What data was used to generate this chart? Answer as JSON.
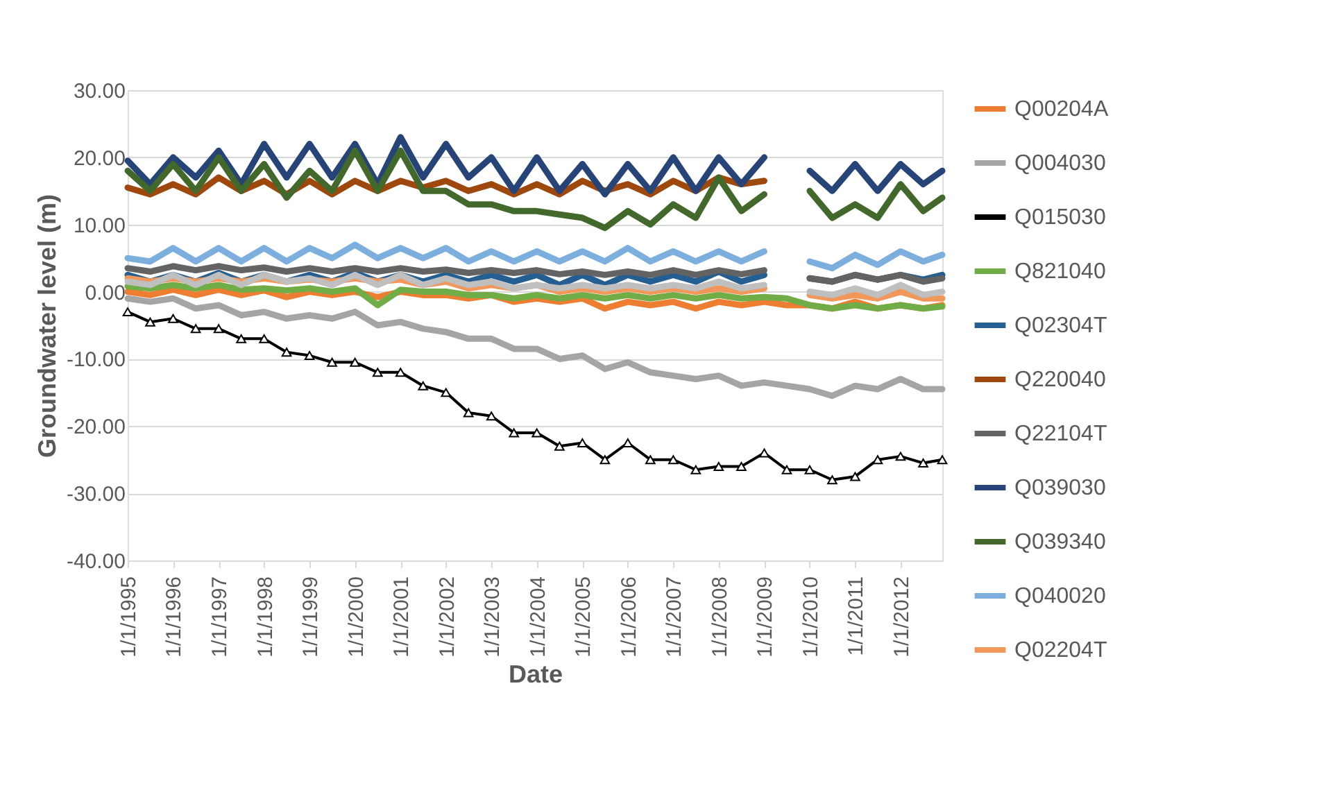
{
  "chart_data": {
    "type": "line",
    "xlabel": "Date",
    "ylabel": "Groundwater level (m)",
    "x": [
      "1995-01-01",
      "1995-07-01",
      "1996-01-01",
      "1996-07-01",
      "1997-01-01",
      "1997-07-01",
      "1998-01-01",
      "1998-07-01",
      "1999-01-01",
      "1999-07-01",
      "2000-01-01",
      "2000-07-01",
      "2001-01-01",
      "2001-07-01",
      "2002-01-01",
      "2002-07-01",
      "2003-01-01",
      "2003-07-01",
      "2004-01-01",
      "2004-07-01",
      "2005-01-01",
      "2005-07-01",
      "2006-01-01",
      "2006-07-01",
      "2007-01-01",
      "2007-07-01",
      "2008-01-01",
      "2008-07-01",
      "2009-01-01",
      "2009-07-01",
      "2010-01-01",
      "2010-07-01",
      "2011-01-01",
      "2011-07-01",
      "2012-01-01",
      "2012-07-01",
      "2012-12-01"
    ],
    "series": [
      {
        "name": "Q00204A",
        "color": "#ed7d31",
        "values": [
          0,
          -0.5,
          0.3,
          -0.5,
          0.3,
          -0.5,
          0.2,
          -0.8,
          0,
          -0.5,
          0,
          -0.8,
          0,
          -0.5,
          -0.5,
          -1,
          -0.5,
          -1.5,
          -1,
          -1.5,
          -1,
          -2.5,
          -1.5,
          -2,
          -1.5,
          -2.5,
          -1.5,
          -2,
          -1.5,
          -2,
          -2,
          -2.5,
          -1.5,
          -2.5,
          -2,
          -2.5,
          -2
        ]
      },
      {
        "name": "Q004030",
        "color": "#a5a5a5",
        "values": [
          -1,
          -1.5,
          -1,
          -2.5,
          -2,
          -3.5,
          -3,
          -4,
          -3.5,
          -4,
          -3,
          -5,
          -4.5,
          -5.5,
          -6,
          -7,
          -7,
          -8.5,
          -8.5,
          -10,
          -9.5,
          -11.5,
          -10.5,
          -12,
          -12.5,
          -13,
          -12.5,
          -14,
          -13.5,
          -14,
          -14.5,
          -15.5,
          -14,
          -14.5,
          -13,
          -14.5,
          -14.5
        ]
      },
      {
        "name": "Q015030",
        "color": "#000000",
        "marker": "triangle",
        "values": [
          -3,
          -4.5,
          -4,
          -5.5,
          -5.5,
          -7,
          -7,
          -9,
          -9.5,
          -10.5,
          -10.5,
          -12,
          -12,
          -14,
          -15,
          -18,
          -18.5,
          -21,
          -21,
          -23,
          -22.5,
          -25,
          -22.5,
          -25,
          -25,
          -26.5,
          -26,
          -26,
          -24,
          -26.5,
          -26.5,
          -28,
          -27.5,
          -25,
          -24.5,
          -25.5,
          -25
        ]
      },
      {
        "name": "Q821040",
        "color": "#70ad47",
        "values": [
          0.8,
          0.5,
          1,
          0.5,
          1,
          0.3,
          0.5,
          0.2,
          0.5,
          0,
          0.5,
          -2,
          0.3,
          0,
          0,
          -0.5,
          -0.5,
          -1,
          -0.5,
          -1,
          -0.5,
          -1,
          -0.5,
          -1,
          -0.5,
          -1,
          -0.5,
          -1,
          -0.8,
          -1,
          -2,
          -2.5,
          -2,
          -2.5,
          -2,
          -2.5,
          -2.2
        ]
      },
      {
        "name": "Q02304T",
        "color": "#255e91",
        "values": [
          2.5,
          1.5,
          2.5,
          1.5,
          2.8,
          1.5,
          2.5,
          1.5,
          2.5,
          1.5,
          2.8,
          1.5,
          2.5,
          1.5,
          2.5,
          1.5,
          2.5,
          1.5,
          2.5,
          1,
          2.5,
          1,
          2.5,
          1.5,
          2.5,
          1.5,
          3,
          1.5,
          2.5,
          null,
          2,
          1.5,
          2.5,
          1.8,
          2.5,
          1.8,
          2.5
        ]
      },
      {
        "name": "Q220040",
        "color": "#9e480e",
        "values": [
          15.5,
          14.5,
          16,
          14.5,
          17,
          15,
          16.5,
          14.5,
          16.5,
          14.5,
          16.5,
          15,
          16.5,
          15.5,
          16.5,
          15,
          16,
          14.5,
          16,
          14.5,
          16.5,
          15,
          16,
          14.5,
          16.5,
          15,
          17,
          16,
          16.5,
          null,
          null,
          null,
          null,
          null,
          null,
          null,
          null
        ]
      },
      {
        "name": "Q22104T",
        "color": "#636363",
        "values": [
          3.5,
          3,
          3.8,
          3.2,
          3.8,
          3.2,
          3.6,
          3,
          3.5,
          3,
          3.5,
          3,
          3.5,
          3,
          3.3,
          2.8,
          3.2,
          2.8,
          3.2,
          2.6,
          3,
          2.5,
          3,
          2.5,
          3.2,
          2.5,
          3.2,
          2.6,
          3.2,
          null,
          2,
          1.5,
          2.5,
          1.8,
          2.5,
          1.5,
          2
        ]
      },
      {
        "name": "Q039030",
        "color": "#264478",
        "values": [
          19.5,
          16,
          20,
          17,
          21,
          16,
          22,
          17,
          22,
          17,
          22,
          16,
          23,
          17,
          22,
          17,
          20,
          15,
          20,
          15,
          19,
          14.5,
          19,
          15,
          20,
          15,
          20,
          16,
          20,
          null,
          18,
          15,
          19,
          15,
          19,
          16,
          18
        ]
      },
      {
        "name": "Q039340",
        "color": "#43682b",
        "values": [
          18,
          15,
          19,
          15,
          20,
          15,
          19,
          14,
          18,
          15,
          21,
          15,
          21,
          15,
          15,
          13,
          13,
          12,
          12,
          11.5,
          11,
          9.5,
          12,
          10,
          13,
          11,
          17,
          12,
          14.5,
          null,
          15,
          11,
          13,
          11,
          16,
          12,
          14
        ]
      },
      {
        "name": "Q040020",
        "color": "#7cafdd",
        "values": [
          5,
          4.5,
          6.5,
          4.5,
          6.5,
          4.5,
          6.5,
          4.5,
          6.5,
          5,
          7,
          5,
          6.5,
          5,
          6.5,
          4.5,
          6,
          4.5,
          6,
          4.5,
          6,
          4.5,
          6.5,
          4.5,
          6,
          4.5,
          6,
          4.5,
          6,
          null,
          4.5,
          3.5,
          5.5,
          4,
          6,
          4.5,
          5.5
        ]
      },
      {
        "name": "Q02204T",
        "color": "#f1975a",
        "values": [
          2,
          1.5,
          2,
          1.5,
          2,
          1.5,
          2,
          1.5,
          1.8,
          1.5,
          2,
          1.5,
          1.8,
          1,
          1.5,
          0.5,
          1,
          0.5,
          1,
          0,
          0.5,
          0,
          0.5,
          0,
          0.5,
          0,
          0.5,
          0,
          0.5,
          null,
          -0.5,
          -1,
          -0.5,
          -1,
          0,
          -1,
          -1
        ]
      },
      {
        "color": "#bfbfbf",
        "values": [
          1.5,
          1,
          2.5,
          1,
          2.5,
          1,
          2.5,
          1.5,
          2,
          1,
          2.5,
          1,
          2.5,
          1,
          2,
          1,
          1.5,
          0.5,
          1,
          0.5,
          1,
          0.5,
          1,
          0.5,
          1,
          0.5,
          1.5,
          0.5,
          1,
          null,
          0,
          -0.5,
          0.5,
          -0.5,
          1,
          -0.5,
          0
        ]
      }
    ],
    "xlim": [
      "1995-01-01",
      "2012-12-01"
    ],
    "xticks": [
      {
        "value": "1995-01-01",
        "label": "1/1/1995"
      },
      {
        "value": "1996-01-01",
        "label": "1/1/1996"
      },
      {
        "value": "1997-01-01",
        "label": "1/1/1997"
      },
      {
        "value": "1998-01-01",
        "label": "1/1/1998"
      },
      {
        "value": "1999-01-01",
        "label": "1/1/1999"
      },
      {
        "value": "2000-01-01",
        "label": "1/1/2000"
      },
      {
        "value": "2001-01-01",
        "label": "1/1/2001"
      },
      {
        "value": "2002-01-01",
        "label": "1/1/2002"
      },
      {
        "value": "2003-01-01",
        "label": "1/1/2003"
      },
      {
        "value": "2004-01-01",
        "label": "1/1/2004"
      },
      {
        "value": "2005-01-01",
        "label": "1/1/2005"
      },
      {
        "value": "2006-01-01",
        "label": "1/1/2006"
      },
      {
        "value": "2007-01-01",
        "label": "1/1/2007"
      },
      {
        "value": "2008-01-01",
        "label": "1/1/2008"
      },
      {
        "value": "2009-01-01",
        "label": "1/1/2009"
      },
      {
        "value": "2010-01-01",
        "label": "1/1/2010"
      },
      {
        "value": "2011-01-01",
        "label": "1/1/2011"
      },
      {
        "value": "2012-01-01",
        "label": "1/1/2012"
      }
    ],
    "ylim": [
      -40,
      30
    ],
    "yticks": [
      {
        "value": -40,
        "label": "-40.00"
      },
      {
        "value": -30,
        "label": "-30.00"
      },
      {
        "value": -20,
        "label": "-20.00"
      },
      {
        "value": -10,
        "label": "-10.00"
      },
      {
        "value": 0,
        "label": "0.00"
      },
      {
        "value": 10,
        "label": "10.00"
      },
      {
        "value": 20,
        "label": "20.00"
      },
      {
        "value": 30,
        "label": "30.00"
      }
    ],
    "grid": "y",
    "legend": "right",
    "line_style": "solid",
    "marker": "none"
  }
}
